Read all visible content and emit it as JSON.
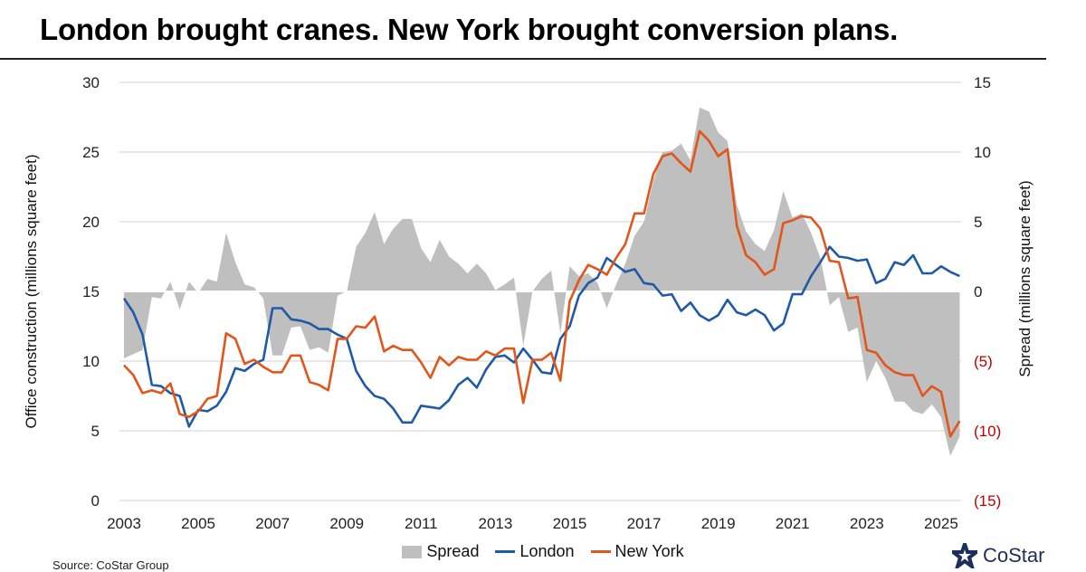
{
  "title": "London brought cranes. New York brought conversion plans.",
  "source": "Source: CoStar Group",
  "logo_text": "CoStar",
  "chart_data": {
    "type": "line",
    "frequency": "quarterly",
    "x_start": "2003 Q1",
    "x_tick_labels": [
      "2003",
      "2005",
      "2007",
      "2009",
      "2011",
      "2013",
      "2015",
      "2017",
      "2019",
      "2021",
      "2023",
      "2025"
    ],
    "ylabel_left": "Office construction (millions square feet)",
    "ylabel_right": "Spread (millions square feet)",
    "ylim_left": [
      0,
      30
    ],
    "ylim_right": [
      -15,
      15
    ],
    "y_ticks_left": [
      "0",
      "5",
      "10",
      "15",
      "20",
      "25",
      "30"
    ],
    "y_ticks_right": [
      "(15)",
      "(10)",
      "(5)",
      "0",
      "5",
      "10",
      "15"
    ],
    "grid": true,
    "legend_position": "bottom",
    "colors": {
      "Spread": "#bfbfbf",
      "London": "#1f5aa6",
      "New York": "#e0561b",
      "negative_tick": "#c00000"
    },
    "series": [
      {
        "name": "Spread",
        "type": "area",
        "axis": "right",
        "values": [
          -4.8,
          -4.5,
          -4.2,
          -0.4,
          -0.5,
          0.7,
          -1.3,
          0.7,
          -0.1,
          0.9,
          0.7,
          4.2,
          2.1,
          0.5,
          0.3,
          -0.5,
          -4.6,
          -4.6,
          -2.6,
          -2.5,
          -4.2,
          -4.0,
          -4.4,
          -0.3,
          0.0,
          3.2,
          4.2,
          5.7,
          3.4,
          4.5,
          5.2,
          5.2,
          3.1,
          2.1,
          3.7,
          2.5,
          2.0,
          1.3,
          2.0,
          1.3,
          0.1,
          0.5,
          1.0,
          -3.9,
          0.0,
          0.9,
          1.5,
          -3.0,
          1.8,
          1.1,
          1.3,
          0.6,
          -1.2,
          0.5,
          2.0,
          4.0,
          5.0,
          7.9,
          10.0,
          10.1,
          10.6,
          9.4,
          13.2,
          12.9,
          11.4,
          10.8,
          6.2,
          4.3,
          3.4,
          2.9,
          4.4,
          7.2,
          5.3,
          5.6,
          4.2,
          2.4,
          -1.0,
          -0.4,
          -2.9,
          -2.6,
          -6.5,
          -5.0,
          -6.2,
          -7.9,
          -7.9,
          -8.6,
          -8.8,
          -8.1,
          -9.0,
          -11.8,
          -10.4
        ]
      },
      {
        "name": "London",
        "axis": "left",
        "values": [
          14.5,
          13.5,
          11.9,
          8.3,
          8.2,
          7.7,
          7.5,
          5.3,
          6.5,
          6.4,
          6.8,
          7.8,
          9.5,
          9.3,
          9.8,
          10.1,
          13.8,
          13.8,
          13.0,
          12.9,
          12.7,
          12.3,
          12.3,
          11.9,
          11.6,
          9.3,
          8.2,
          7.5,
          7.3,
          6.6,
          5.6,
          5.6,
          6.8,
          6.7,
          6.6,
          7.2,
          8.3,
          8.8,
          8.1,
          9.4,
          10.3,
          10.4,
          9.9,
          10.9,
          10.1,
          9.2,
          9.1,
          11.6,
          12.5,
          14.7,
          15.6,
          16.0,
          17.4,
          16.9,
          16.4,
          16.6,
          15.6,
          15.5,
          14.7,
          14.8,
          13.6,
          14.2,
          13.3,
          12.9,
          13.3,
          14.4,
          13.5,
          13.3,
          13.7,
          13.3,
          12.2,
          12.7,
          14.8,
          14.8,
          16.1,
          17.1,
          18.2,
          17.5,
          17.4,
          17.2,
          17.3,
          15.6,
          15.9,
          17.1,
          16.9,
          17.6,
          16.3,
          16.3,
          16.8,
          16.4,
          16.1
        ]
      },
      {
        "name": "New York",
        "axis": "left",
        "values": [
          9.7,
          9.0,
          7.7,
          7.9,
          7.7,
          8.4,
          6.2,
          6.0,
          6.4,
          7.3,
          7.5,
          12.0,
          11.6,
          9.8,
          10.1,
          9.6,
          9.2,
          9.2,
          10.4,
          10.4,
          8.5,
          8.3,
          7.9,
          11.6,
          11.6,
          12.5,
          12.4,
          13.2,
          10.7,
          11.1,
          10.8,
          10.8,
          9.9,
          8.8,
          10.3,
          9.7,
          10.3,
          10.1,
          10.1,
          10.7,
          10.4,
          10.9,
          10.9,
          7.0,
          10.1,
          10.1,
          10.6,
          8.6,
          14.3,
          15.8,
          16.9,
          16.6,
          16.2,
          17.4,
          18.4,
          20.6,
          20.6,
          23.4,
          24.7,
          24.9,
          24.2,
          23.6,
          26.5,
          25.8,
          24.7,
          25.2,
          19.7,
          17.6,
          17.1,
          16.2,
          16.6,
          19.9,
          20.1,
          20.4,
          20.3,
          19.5,
          17.2,
          17.1,
          14.5,
          14.6,
          10.8,
          10.6,
          9.7,
          9.2,
          9.0,
          9.0,
          7.5,
          8.2,
          7.8,
          4.6,
          5.7
        ]
      }
    ]
  }
}
